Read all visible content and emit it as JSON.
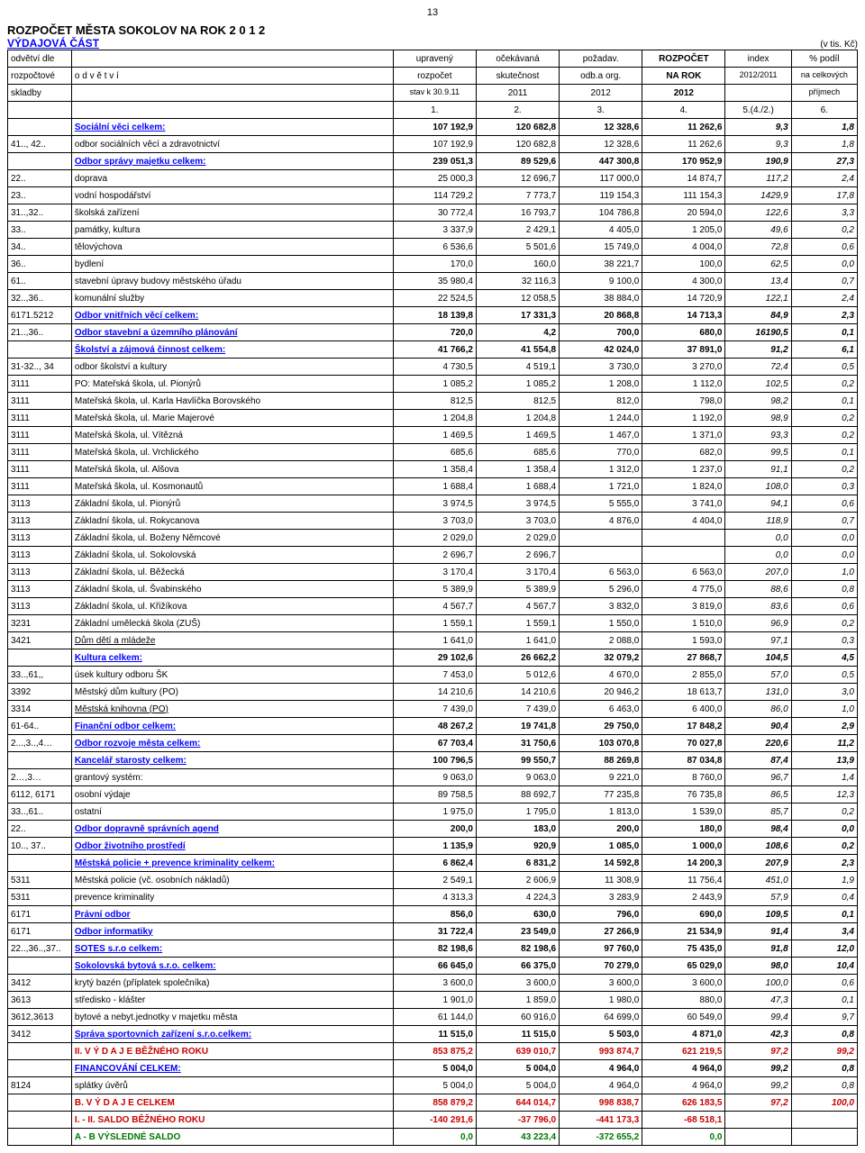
{
  "pageNumber": "13",
  "heading1": "ROZPOČET MĚSTA SOKOLOV NA ROK   2  0  1  2",
  "heading2": "VÝDAJOVÁ ČÁST",
  "unitNote": "(v tis. Kč)",
  "header": {
    "r1": [
      "odvětví dle",
      "",
      "upravený",
      "očekávaná",
      "požadav.",
      "ROZPOČET",
      "index",
      "% podíl"
    ],
    "r2": [
      "rozpočtové",
      "o d v ě t v í",
      "rozpočet",
      "skutečnost",
      "odb.a org.",
      "NA ROK",
      "2012/2011",
      "na celkových"
    ],
    "r3": [
      "skladby",
      "",
      "stav k 30.9.11",
      "2011",
      "2012",
      "2012",
      "",
      "příjmech"
    ],
    "r4": [
      "",
      "",
      "1.",
      "2.",
      "3.",
      "4.",
      "5.(4./2.)",
      "6."
    ]
  },
  "colWidths": [
    "60px",
    "302px",
    "78px",
    "78px",
    "78px",
    "78px",
    "62px",
    "62px"
  ],
  "rows": [
    {
      "c0": "",
      "c1": "Sociální věci celkem:",
      "v": [
        "107 192,9",
        "120 682,8",
        "12 328,6",
        "11 262,6",
        "9,3",
        "1,8"
      ],
      "style": "section"
    },
    {
      "c0": "41.., 42..",
      "c1": "odbor sociálních věcí a zdravotnictví",
      "v": [
        "107 192,9",
        "120 682,8",
        "12 328,6",
        "11 262,6",
        "9,3",
        "1,8"
      ]
    },
    {
      "c0": "",
      "c1": "Odbor správy majetku celkem:",
      "v": [
        "239 051,3",
        "89 529,6",
        "447 300,8",
        "170 952,9",
        "190,9",
        "27,3"
      ],
      "style": "section"
    },
    {
      "c0": "22..",
      "c1": "doprava",
      "v": [
        "25 000,3",
        "12 696,7",
        "117 000,0",
        "14 874,7",
        "117,2",
        "2,4"
      ]
    },
    {
      "c0": "23..",
      "c1": "vodní hospodářství",
      "v": [
        "114 729,2",
        "7 773,7",
        "119 154,3",
        "111 154,3",
        "1429,9",
        "17,8"
      ]
    },
    {
      "c0": "31..,32..",
      "c1": "školská zařízení",
      "v": [
        "30 772,4",
        "16 793,7",
        "104 786,8",
        "20 594,0",
        "122,6",
        "3,3"
      ]
    },
    {
      "c0": "33..",
      "c1": "památky, kultura",
      "v": [
        "3 337,9",
        "2 429,1",
        "4 405,0",
        "1 205,0",
        "49,6",
        "0,2"
      ]
    },
    {
      "c0": "34..",
      "c1": "tělovýchova",
      "v": [
        "6 536,6",
        "5 501,6",
        "15 749,0",
        "4 004,0",
        "72,8",
        "0,6"
      ]
    },
    {
      "c0": "36..",
      "c1": "bydlení",
      "v": [
        "170,0",
        "160,0",
        "38 221,7",
        "100,0",
        "62,5",
        "0,0"
      ]
    },
    {
      "c0": "61..",
      "c1": "stavební úpravy budovy městského úřadu",
      "v": [
        "35 980,4",
        "32 116,3",
        "9 100,0",
        "4 300,0",
        "13,4",
        "0,7"
      ]
    },
    {
      "c0": "32..,36..",
      "c1": "komunální služby",
      "v": [
        "22 524,5",
        "12 058,5",
        "38 884,0",
        "14 720,9",
        "122,1",
        "2,4"
      ]
    },
    {
      "c0": "6171.5212",
      "c1": "Odbor vnitřních věcí celkem:",
      "v": [
        "18 139,8",
        "17 331,3",
        "20 868,8",
        "14 713,3",
        "84,9",
        "2,3"
      ],
      "style": "section"
    },
    {
      "c0": "21..,36..",
      "c1": "Odbor stavební a územního plánování",
      "v": [
        "720,0",
        "4,2",
        "700,0",
        "680,0",
        "16190,5",
        "0,1"
      ],
      "style": "section"
    },
    {
      "c0": "",
      "c1": "Školství a zájmová činnost celkem:",
      "v": [
        "41 766,2",
        "41 554,8",
        "42 024,0",
        "37 891,0",
        "91,2",
        "6,1"
      ],
      "style": "section"
    },
    {
      "c0": "31-32.., 34",
      "c1": "odbor školství a kultury",
      "v": [
        "4 730,5",
        "4 519,1",
        "3 730,0",
        "3 270,0",
        "72,4",
        "0,5"
      ]
    },
    {
      "c0": "3111",
      "c1": "PO:  Mateřská škola, ul. Pionýrů",
      "v": [
        "1 085,2",
        "1 085,2",
        "1 208,0",
        "1 112,0",
        "102,5",
        "0,2"
      ]
    },
    {
      "c0": "3111",
      "c1": "Mateřská škola, ul. Karla Havlíčka Borovského",
      "v": [
        "812,5",
        "812,5",
        "812,0",
        "798,0",
        "98,2",
        "0,1"
      ]
    },
    {
      "c0": "3111",
      "c1": "Mateřská škola, ul. Marie Majerové",
      "v": [
        "1 204,8",
        "1 204,8",
        "1 244,0",
        "1 192,0",
        "98,9",
        "0,2"
      ]
    },
    {
      "c0": "3111",
      "c1": "Mateřská škola, ul. Vítězná",
      "v": [
        "1 469,5",
        "1 469,5",
        "1 467,0",
        "1 371,0",
        "93,3",
        "0,2"
      ]
    },
    {
      "c0": "3111",
      "c1": "Mateřská škola, ul. Vrchlického",
      "v": [
        "685,6",
        "685,6",
        "770,0",
        "682,0",
        "99,5",
        "0,1"
      ]
    },
    {
      "c0": "3111",
      "c1": "Mateřská škola, ul. Alšova",
      "v": [
        "1 358,4",
        "1 358,4",
        "1 312,0",
        "1 237,0",
        "91,1",
        "0,2"
      ]
    },
    {
      "c0": "3111",
      "c1": "Mateřská škola, ul. Kosmonautů",
      "v": [
        "1 688,4",
        "1 688,4",
        "1 721,0",
        "1 824,0",
        "108,0",
        "0,3"
      ]
    },
    {
      "c0": "3113",
      "c1": "Základní škola, ul. Pionýrů",
      "v": [
        "3 974,5",
        "3 974,5",
        "5 555,0",
        "3 741,0",
        "94,1",
        "0,6"
      ]
    },
    {
      "c0": "3113",
      "c1": "Základní škola, ul. Rokycanova",
      "v": [
        "3 703,0",
        "3 703,0",
        "4 876,0",
        "4 404,0",
        "118,9",
        "0,7"
      ]
    },
    {
      "c0": "3113",
      "c1": "Základní škola, ul. Boženy Němcové",
      "v": [
        "2 029,0",
        "2 029,0",
        "",
        "",
        "0,0",
        "0,0"
      ]
    },
    {
      "c0": "3113",
      "c1": "Základní škola, ul. Sokolovská",
      "v": [
        "2 696,7",
        "2 696,7",
        "",
        "",
        "0,0",
        "0,0"
      ]
    },
    {
      "c0": "3113",
      "c1": "Základní škola, ul. Běžecká",
      "v": [
        "3 170,4",
        "3 170,4",
        "6 563,0",
        "6 563,0",
        "207,0",
        "1,0"
      ]
    },
    {
      "c0": "3113",
      "c1": "Základní škola, ul. Švabinského",
      "v": [
        "5 389,9",
        "5 389,9",
        "5 296,0",
        "4 775,0",
        "88,6",
        "0,8"
      ]
    },
    {
      "c0": "3113",
      "c1": "Základní škola, ul. Křižíkova",
      "v": [
        "4 567,7",
        "4 567,7",
        "3 832,0",
        "3 819,0",
        "83,6",
        "0,6"
      ]
    },
    {
      "c0": "3231",
      "c1": "Základní umělecká škola (ZUŠ)",
      "v": [
        "1 559,1",
        "1 559,1",
        "1 550,0",
        "1 510,0",
        "96,9",
        "0,2"
      ]
    },
    {
      "c0": "3421",
      "c1": "Dům dětí a mládeže",
      "v": [
        "1 641,0",
        "1 641,0",
        "2 088,0",
        "1 593,0",
        "97,1",
        "0,3"
      ],
      "c1u": true
    },
    {
      "c0": "",
      "c1": "Kultura celkem:",
      "v": [
        "29 102,6",
        "26 662,2",
        "32 079,2",
        "27 868,7",
        "104,5",
        "4,5"
      ],
      "style": "section"
    },
    {
      "c0": "33..,61,,",
      "c1": "úsek kultury odboru ŠK",
      "v": [
        "7 453,0",
        "5 012,6",
        "4 670,0",
        "2 855,0",
        "57,0",
        "0,5"
      ]
    },
    {
      "c0": "3392",
      "c1": "Městský dům kultury (PO)",
      "v": [
        "14 210,6",
        "14 210,6",
        "20 946,2",
        "18 613,7",
        "131,0",
        "3,0"
      ]
    },
    {
      "c0": "3314",
      "c1": "Městská  knihovna (PO)",
      "v": [
        "7 439,0",
        "7 439,0",
        "6 463,0",
        "6 400,0",
        "86,0",
        "1,0"
      ],
      "c1u": true
    },
    {
      "c0": "61-64..",
      "c1": "Finanční odbor celkem:",
      "v": [
        "48 267,2",
        "19 741,8",
        "29 750,0",
        "17 848,2",
        "90,4",
        "2,9"
      ],
      "style": "section"
    },
    {
      "c0": "2...,3..,4…",
      "c1": "Odbor rozvoje města celkem:",
      "v": [
        "67 703,4",
        "31 750,6",
        "103 070,8",
        "70 027,8",
        "220,6",
        "11,2"
      ],
      "style": "section"
    },
    {
      "c0": "",
      "c1": "Kancelář starosty celkem:",
      "v": [
        "100 796,5",
        "99 550,7",
        "88 269,8",
        "87 034,8",
        "87,4",
        "13,9"
      ],
      "style": "section"
    },
    {
      "c0": "2…,3…",
      "c1": "grantový systém:",
      "v": [
        "9 063,0",
        "9 063,0",
        "9 221,0",
        "8 760,0",
        "96,7",
        "1,4"
      ]
    },
    {
      "c0": "6112, 6171",
      "c1": "osobní výdaje",
      "v": [
        "89 758,5",
        "88 692,7",
        "77 235,8",
        "76 735,8",
        "86,5",
        "12,3"
      ]
    },
    {
      "c0": "33..,61..",
      "c1": "ostatní",
      "v": [
        "1 975,0",
        "1 795,0",
        "1 813,0",
        "1 539,0",
        "85,7",
        "0,2"
      ]
    },
    {
      "c0": "22..",
      "c1": "Odbor dopravně správních agend",
      "v": [
        "200,0",
        "183,0",
        "200,0",
        "180,0",
        "98,4",
        "0,0"
      ],
      "style": "section"
    },
    {
      "c0": "10.., 37..",
      "c1": "Odbor životního prostředí",
      "v": [
        "1 135,9",
        "920,9",
        "1 085,0",
        "1 000,0",
        "108,6",
        "0,2"
      ],
      "style": "section"
    },
    {
      "c0": "",
      "c1": "Městská policie + prevence kriminality celkem:",
      "v": [
        "6 862,4",
        "6 831,2",
        "14 592,8",
        "14 200,3",
        "207,9",
        "2,3"
      ],
      "style": "section"
    },
    {
      "c0": "5311",
      "c1": "Městská policie  (vč. osobních nákladů)",
      "v": [
        "2 549,1",
        "2 606,9",
        "11 308,9",
        "11 756,4",
        "451,0",
        "1,9"
      ]
    },
    {
      "c0": "5311",
      "c1": "prevence kriminality",
      "v": [
        "4 313,3",
        "4 224,3",
        "3 283,9",
        "2 443,9",
        "57,9",
        "0,4"
      ]
    },
    {
      "c0": "6171",
      "c1": "Právní odbor",
      "v": [
        "856,0",
        "630,0",
        "796,0",
        "690,0",
        "109,5",
        "0,1"
      ],
      "style": "section"
    },
    {
      "c0": "6171",
      "c1": "Odbor informatiky",
      "v": [
        "31 722,4",
        "23 549,0",
        "27 266,9",
        "21 534,9",
        "91,4",
        "3,4"
      ],
      "style": "section"
    },
    {
      "c0": "22..,36..,37..",
      "c1": "SOTES s.r.o celkem:",
      "v": [
        "82 198,6",
        "82 198,6",
        "97 760,0",
        "75 435,0",
        "91,8",
        "12,0"
      ],
      "style": "section"
    },
    {
      "c0": "",
      "c1": "Sokolovská bytová s.r.o. celkem:",
      "v": [
        "66 645,0",
        "66 375,0",
        "70 279,0",
        "65 029,0",
        "98,0",
        "10,4"
      ],
      "style": "section"
    },
    {
      "c0": "3412",
      "c1": "krytý bazén (příplatek společníka)",
      "v": [
        "3 600,0",
        "3 600,0",
        "3 600,0",
        "3 600,0",
        "100,0",
        "0,6"
      ]
    },
    {
      "c0": "3613",
      "c1": "středisko - klášter",
      "v": [
        "1 901,0",
        "1 859,0",
        "1 980,0",
        "880,0",
        "47,3",
        "0,1"
      ]
    },
    {
      "c0": "3612,3613",
      "c1": "bytové a nebyt.jednotky v majetku města",
      "v": [
        "61 144,0",
        "60 916,0",
        "64 699,0",
        "60 549,0",
        "99,4",
        "9,7"
      ]
    },
    {
      "c0": "3412",
      "c1": "Správa sportovních zařízení s.r.o.celkem:",
      "v": [
        "11 515,0",
        "11 515,0",
        "5 503,0",
        "4 871,0",
        "42,3",
        "0,8"
      ],
      "style": "section"
    },
    {
      "c0": "",
      "c1": "II.     V Ý D A J E   BĚŽNÉHO ROKU",
      "v": [
        "853 875,2",
        "639 010,7",
        "993 874,7",
        "621 219,5",
        "97,2",
        "99,2"
      ],
      "style": "red"
    },
    {
      "c0": "",
      "c1": "FINANCOVÁNÍ CELKEM:",
      "v": [
        "5 004,0",
        "5 004,0",
        "4 964,0",
        "4 964,0",
        "99,2",
        "0,8"
      ],
      "style": "section"
    },
    {
      "c0": "8124",
      "c1": "splátky  úvěrů",
      "v": [
        "5 004,0",
        "5 004,0",
        "4 964,0",
        "4 964,0",
        "99,2",
        "0,8"
      ]
    },
    {
      "c0": "",
      "c1": "B.    V Ý D A J E   CELKEM",
      "v": [
        "858 879,2",
        "644 014,7",
        "998 838,7",
        "626 183,5",
        "97,2",
        "100,0"
      ],
      "style": "red"
    },
    {
      "c0": "",
      "c1": "I. - II. SALDO BĚŽNÉHO ROKU",
      "v": [
        "-140 291,6",
        "-37 796,0",
        "-441 173,3",
        "-68 518,1",
        "",
        ""
      ],
      "style": "red"
    },
    {
      "c0": "",
      "c1": "A - B VÝSLEDNÉ SALDO",
      "v": [
        "0,0",
        "43 223,4",
        "-372 655,2",
        "0,0",
        "",
        ""
      ],
      "style": "green"
    }
  ]
}
